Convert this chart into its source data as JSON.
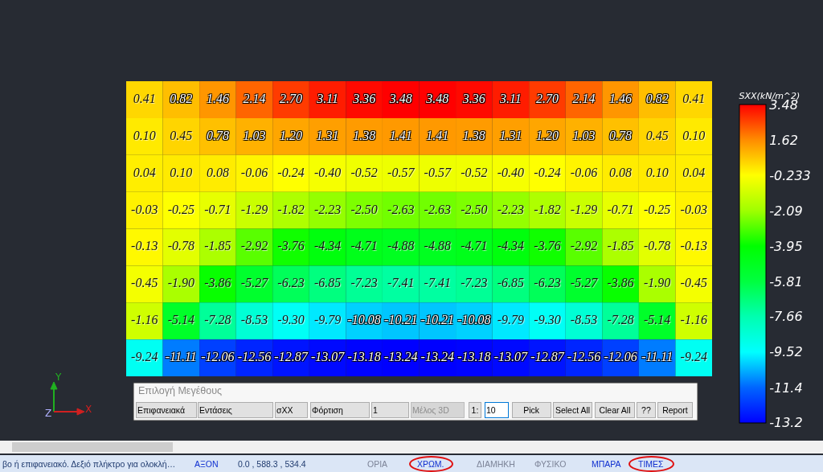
{
  "chart_data": {
    "type": "heatmap",
    "clabel": "SXX(kN/m^2)",
    "categories": [
      null,
      null,
      null,
      null,
      null,
      null,
      null,
      null,
      null,
      null,
      null,
      null,
      null,
      null,
      null,
      null
    ],
    "y_categories": [
      null,
      null,
      null,
      null,
      null,
      null,
      null,
      null
    ],
    "cells": [
      [
        0.41,
        0.82,
        1.46,
        2.14,
        2.7,
        3.11,
        3.36,
        3.48,
        3.48,
        3.36,
        3.11,
        2.7,
        2.14,
        1.46,
        0.82,
        0.41
      ],
      [
        0.1,
        0.45,
        0.78,
        1.03,
        1.2,
        1.31,
        1.38,
        1.41,
        1.41,
        1.38,
        1.31,
        1.2,
        1.03,
        0.78,
        0.45,
        0.1
      ],
      [
        0.04,
        0.1,
        0.08,
        -0.06,
        -0.24,
        -0.4,
        -0.52,
        -0.57,
        -0.57,
        -0.52,
        -0.4,
        -0.24,
        -0.06,
        0.08,
        0.1,
        0.04
      ],
      [
        -0.03,
        -0.25,
        -0.71,
        -1.29,
        -1.82,
        -2.23,
        -2.5,
        -2.63,
        -2.63,
        -2.5,
        -2.23,
        -1.82,
        -1.29,
        -0.71,
        -0.25,
        -0.03
      ],
      [
        -0.13,
        -0.78,
        -1.85,
        -2.92,
        -3.76,
        -4.34,
        -4.71,
        -4.88,
        -4.88,
        -4.71,
        -4.34,
        -3.76,
        -2.92,
        -1.85,
        -0.78,
        -0.13
      ],
      [
        -0.45,
        -1.9,
        -3.86,
        -5.27,
        -6.23,
        -6.85,
        -7.23,
        -7.41,
        -7.41,
        -7.23,
        -6.85,
        -6.23,
        -5.27,
        -3.86,
        -1.9,
        -0.45
      ],
      [
        -1.16,
        -5.14,
        -7.28,
        -8.53,
        -9.3,
        -9.79,
        -10.08,
        -10.21,
        -10.21,
        -10.08,
        -9.79,
        -9.3,
        -8.53,
        -7.28,
        -5.14,
        -1.16
      ],
      [
        -9.24,
        -11.11,
        -12.06,
        -12.56,
        -12.87,
        -13.07,
        -13.18,
        -13.24,
        -13.24,
        -13.18,
        -13.07,
        -12.87,
        -12.56,
        -12.06,
        -11.11,
        -9.24
      ]
    ],
    "cell_labels": [
      [
        "0.41",
        "0.82",
        "1.46",
        "2.14",
        "2.70",
        "3.11",
        "3.36",
        "3.48",
        "3.48",
        "3.36",
        "3.11",
        "2.70",
        "2.14",
        "1.46",
        "0.82",
        "0.41"
      ],
      [
        "0.10",
        "0.45",
        "0.78",
        "1.03",
        "1.20",
        "1.31",
        "1.38",
        "1.41",
        "1.41",
        "1.38",
        "1.31",
        "1.20",
        "1.03",
        "0.78",
        "0.45",
        "0.10"
      ],
      [
        "0.04",
        "0.10",
        "0.08",
        "-0.06",
        "-0.24",
        "-0.40",
        "-0.52",
        "-0.57",
        "-0.57",
        "-0.52",
        "-0.40",
        "-0.24",
        "-0.06",
        "0.08",
        "0.10",
        "0.04"
      ],
      [
        "-0.03",
        "-0.25",
        "-0.71",
        "-1.29",
        "-1.82",
        "-2.23",
        "-2.50",
        "-2.63",
        "-2.63",
        "-2.50",
        "-2.23",
        "-1.82",
        "-1.29",
        "-0.71",
        "-0.25",
        "-0.03"
      ],
      [
        "-0.13",
        "-0.78",
        "-1.85",
        "-2.92",
        "-3.76",
        "-4.34",
        "-4.71",
        "-4.88",
        "-4.88",
        "-4.71",
        "-4.34",
        "-3.76",
        "-2.92",
        "-1.85",
        "-0.78",
        "-0.13"
      ],
      [
        "-0.45",
        "-1.90",
        "-3.86",
        "-5.27",
        "-6.23",
        "-6.85",
        "-7.23",
        "-7.41",
        "-7.41",
        "-7.23",
        "-6.85",
        "-6.23",
        "-5.27",
        "-3.86",
        "-1.90",
        "-0.45"
      ],
      [
        "-1.16",
        "-5.14",
        "-7.28",
        "-8.53",
        "-9.30",
        "-9.79",
        "-10.08",
        "-10.21",
        "-10.21",
        "-10.08",
        "-9.79",
        "-9.30",
        "-8.53",
        "-7.28",
        "-5.14",
        "-1.16"
      ],
      [
        "-9.24",
        "-11.11",
        "-12.06",
        "-12.56",
        "-12.87",
        "-13.07",
        "-13.18",
        "-13.24",
        "-13.24",
        "-13.18",
        "-13.07",
        "-12.87",
        "-12.56",
        "-12.06",
        "-11.11",
        "-9.24"
      ]
    ],
    "clim": [
      -13.24,
      3.48
    ],
    "cticks": [
      3.48,
      1.62,
      -0.233,
      -2.09,
      -3.95,
      -5.81,
      -7.66,
      -9.52,
      -11.4,
      -13.2
    ],
    "annotations": [
      "Y",
      "X",
      "Z",
      "Επιλογή Μεγέθους",
      "Επιφανειακά",
      "Εντάσεις",
      "σXX",
      "Φόρτιση",
      "1",
      "Μέλος 3D",
      "1:",
      "10",
      "Pick",
      "Select All",
      "Clear All",
      "??",
      "Report",
      "βο ή επιφανειακό. Δεξιό πλήκτρο για ολοκλή…",
      "ΑΞΟΝ",
      "0.0 , 588.3 , 534.4",
      "ΟΡΙΑ",
      "ΧΡΩΜ.",
      "ΔΙΑΜΗΚΗ",
      "ΦΥΣΙΚΟ",
      "ΜΠΑΡΑ",
      "ΤΙΜΕΣ"
    ]
  }
}
